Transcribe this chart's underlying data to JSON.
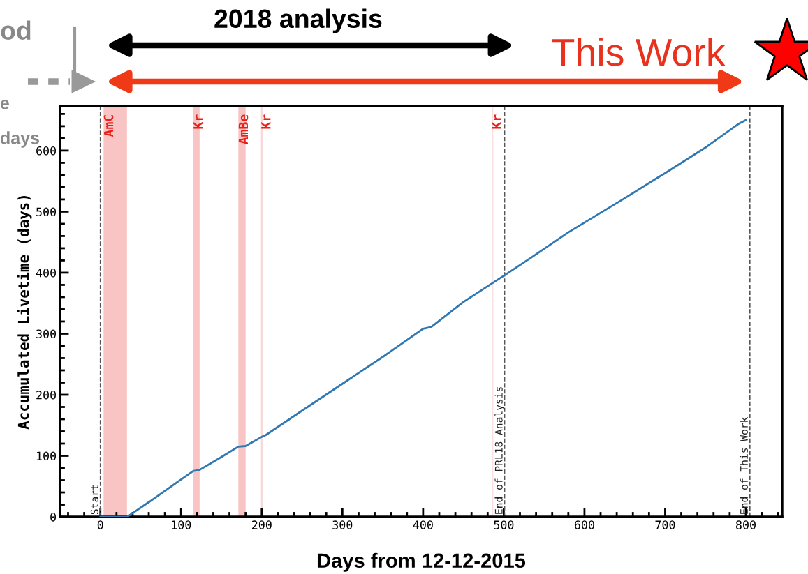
{
  "chart_data": {
    "type": "line",
    "xlabel": "Days from 12-12-2015",
    "ylabel": "Accumulated Livetime (days)",
    "xlim": [
      -50,
      845
    ],
    "ylim": [
      0,
      673
    ],
    "xticks": [
      0,
      100,
      200,
      300,
      400,
      500,
      600,
      700,
      800
    ],
    "yticks": [
      0,
      100,
      200,
      300,
      400,
      500,
      600
    ],
    "series": [
      {
        "color": "#2f78b4",
        "x": [
          0,
          33,
          60,
          90,
          115,
          123,
          150,
          171,
          180,
          200,
          205,
          250,
          300,
          350,
          400,
          410,
          450,
          500,
          540,
          580,
          600,
          650,
          690,
          700,
          750,
          790,
          800
        ],
        "values": [
          0,
          0,
          24,
          52,
          75,
          77,
          98,
          115,
          116,
          131,
          134,
          174,
          218,
          262,
          308,
          311,
          352,
          395,
          430,
          466,
          482,
          522,
          555,
          563,
          605,
          643,
          650
        ]
      }
    ],
    "bands": [
      {
        "axis": "x",
        "from": 4,
        "to": 33,
        "label": "AmC",
        "color": "#f8c4c4"
      },
      {
        "axis": "x",
        "from": 115,
        "to": 123,
        "label": "Kr",
        "color": "#f8c4c4"
      },
      {
        "axis": "x",
        "from": 171,
        "to": 180,
        "label": "AmBe",
        "color": "#f8c4c4"
      },
      {
        "axis": "x",
        "from": 199,
        "to": 201,
        "label": "Kr",
        "color": "#f8d8d8"
      },
      {
        "axis": "x",
        "from": 485,
        "to": 487,
        "label": "Kr",
        "color": "#f8e0e0"
      }
    ],
    "ref_lines": [
      {
        "axis": "x",
        "value": 0,
        "label": "Start",
        "color": "#555555",
        "line_style": "dashed"
      },
      {
        "axis": "x",
        "value": 501,
        "label": "End of PRL18 Analysis",
        "color": "#555555",
        "line_style": "dashed"
      },
      {
        "axis": "x",
        "value": 805,
        "label": "End of This Work",
        "color": "#555555",
        "line_style": "dashed"
      }
    ],
    "annotations": [
      "2018 analysis",
      "This Work",
      "od",
      "e",
      "days"
    ],
    "grid": false,
    "legend": false,
    "marker": "none",
    "line_style": "solid"
  }
}
